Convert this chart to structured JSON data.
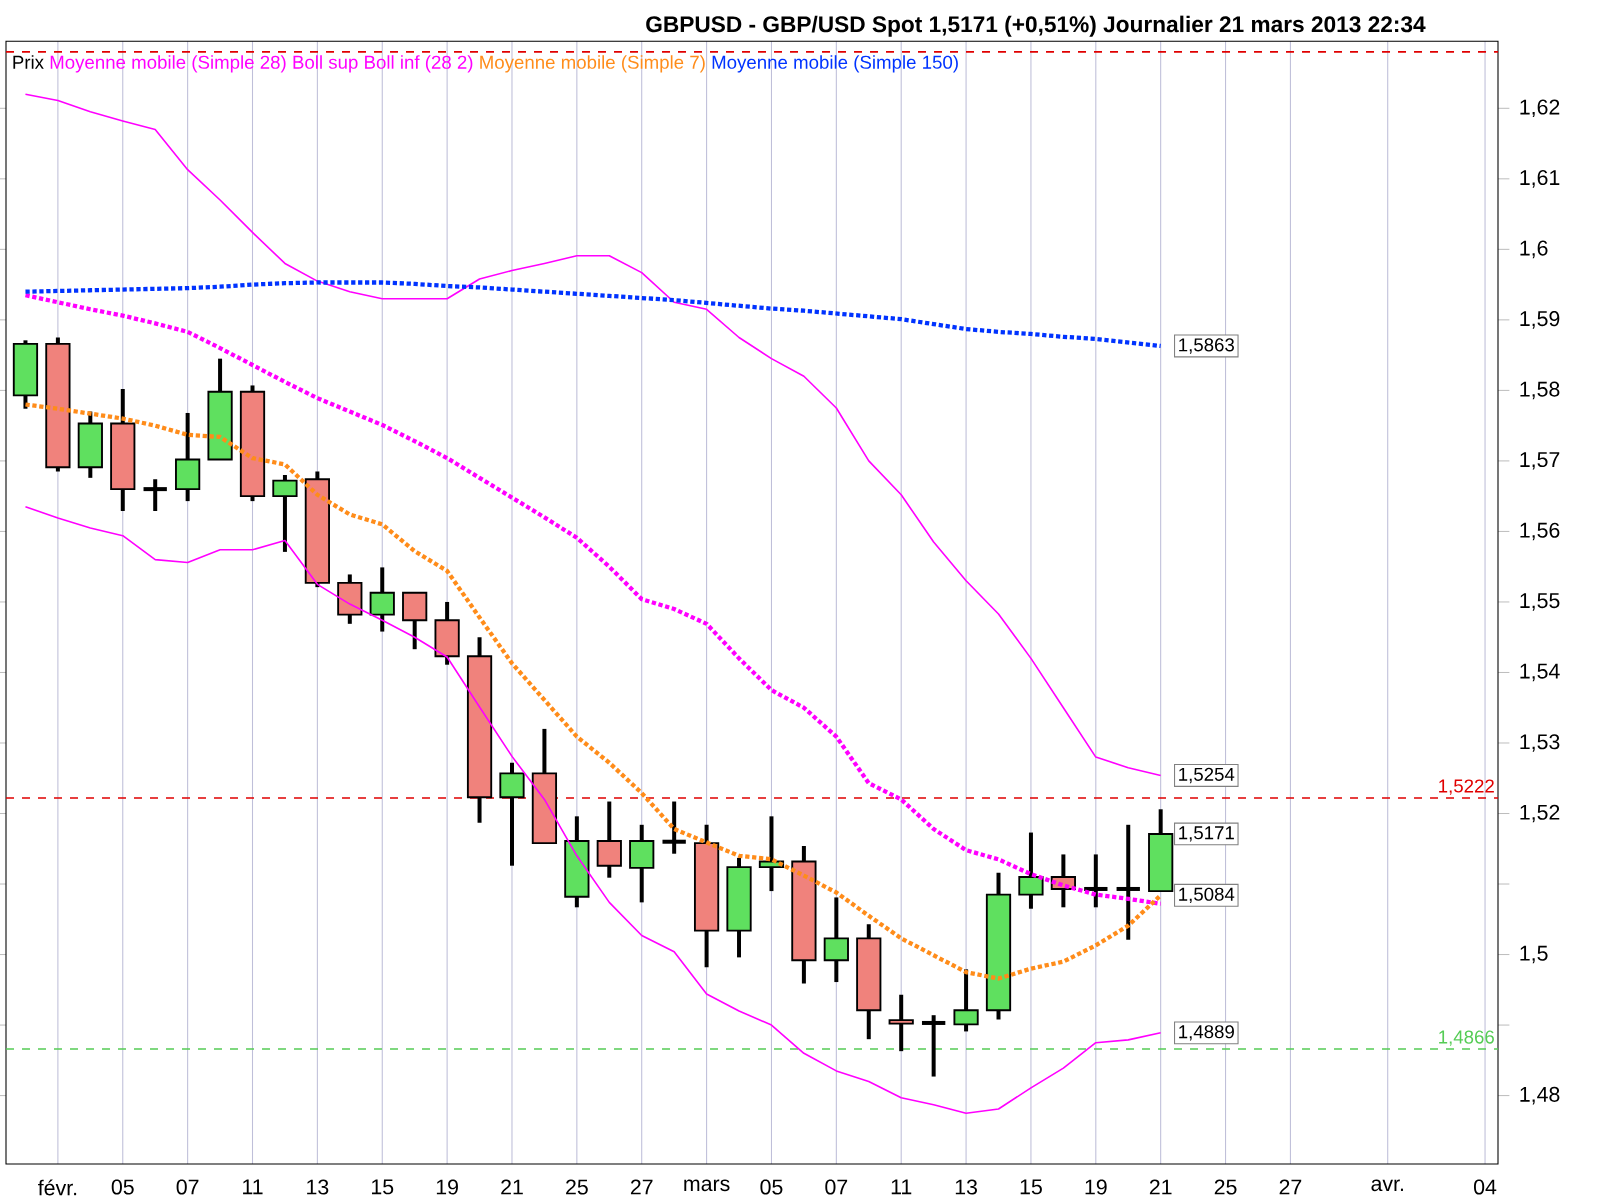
{
  "chart_data": {
    "type": "candlestick",
    "title": "GBPUSD - GBP/USD Spot   1,5171 (+0,51%)   Journalier  21 mars 2013 22:34",
    "ylim": [
      1.4703,
      1.6295
    ],
    "categories": [
      null,
      "févr.",
      null,
      "05",
      null,
      "07",
      null,
      "11",
      null,
      "13",
      null,
      "15",
      null,
      "19",
      null,
      "21",
      null,
      "25",
      null,
      "27",
      null,
      "mars",
      null,
      "05",
      null,
      "07",
      null,
      "11",
      null,
      "13",
      null,
      "15",
      null,
      "19",
      null,
      "21",
      null,
      "25",
      null,
      "27",
      null,
      null,
      "avr.",
      null,
      null,
      "04"
    ],
    "yticks": [
      {
        "value": 1.48,
        "label": "1,48"
      },
      {
        "value": 1.49,
        "label": null
      },
      {
        "value": 1.5,
        "label": "1,5"
      },
      {
        "value": 1.51,
        "label": null
      },
      {
        "value": 1.52,
        "label": "1,52"
      },
      {
        "value": 1.53,
        "label": "1,53"
      },
      {
        "value": 1.54,
        "label": "1,54"
      },
      {
        "value": 1.55,
        "label": "1,55"
      },
      {
        "value": 1.56,
        "label": "1,56"
      },
      {
        "value": 1.57,
        "label": "1,57"
      },
      {
        "value": 1.58,
        "label": "1,58"
      },
      {
        "value": 1.59,
        "label": "1,59"
      },
      {
        "value": 1.6,
        "label": "1,6"
      },
      {
        "value": 1.61,
        "label": "1,61"
      },
      {
        "value": 1.62,
        "label": "1,62"
      }
    ],
    "grid": "x",
    "legend": "top left",
    "series": [
      {
        "name": "Prix",
        "color": "#000000",
        "ohlc": [
          [
            1.5793,
            1.5871,
            1.5774,
            1.5866
          ],
          [
            1.5866,
            1.5875,
            1.5685,
            1.5691
          ],
          [
            1.5691,
            1.577,
            1.5676,
            1.5753
          ],
          [
            1.5753,
            1.5802,
            1.5629,
            1.566
          ],
          [
            1.566,
            1.5674,
            1.5629,
            1.566
          ],
          [
            1.566,
            1.5768,
            1.5643,
            1.5702
          ],
          [
            1.5702,
            1.5845,
            1.5702,
            1.5798
          ],
          [
            1.5798,
            1.5807,
            1.5643,
            1.565
          ],
          [
            1.565,
            1.568,
            1.5571,
            1.5672
          ],
          [
            1.5674,
            1.5685,
            1.5521,
            1.5527
          ],
          [
            1.5527,
            1.5539,
            1.5469,
            1.5482
          ],
          [
            1.5482,
            1.5549,
            1.5458,
            1.5513
          ],
          [
            1.5513,
            1.5513,
            1.5433,
            1.5474
          ],
          [
            1.5474,
            1.55,
            1.5411,
            1.5423
          ],
          [
            1.5423,
            1.545,
            1.5187,
            1.5223
          ],
          [
            1.5223,
            1.5272,
            1.5126,
            1.5257
          ],
          [
            1.5257,
            1.532,
            1.5158,
            1.5158
          ],
          [
            1.5082,
            1.5196,
            1.5067,
            1.5161
          ],
          [
            1.5161,
            1.5217,
            1.5109,
            1.5126
          ],
          [
            1.5123,
            1.5184,
            1.5074,
            1.5161
          ],
          [
            1.516,
            1.5217,
            1.5143,
            1.516
          ],
          [
            1.5158,
            1.5184,
            1.4982,
            1.5034
          ],
          [
            1.5034,
            1.5137,
            1.4996,
            1.5124
          ],
          [
            1.5124,
            1.5196,
            1.509,
            1.5132
          ],
          [
            1.5132,
            1.5154,
            1.4959,
            1.4992
          ],
          [
            1.4992,
            1.5081,
            1.4961,
            1.5023
          ],
          [
            1.5023,
            1.5043,
            1.488,
            1.4921
          ],
          [
            1.4907,
            1.4943,
            1.4863,
            1.4902
          ],
          [
            1.4903,
            1.4914,
            1.4827,
            1.4903
          ],
          [
            1.4901,
            1.4979,
            1.4891,
            1.4921
          ],
          [
            1.4921,
            1.5116,
            1.4908,
            1.5085
          ],
          [
            1.5085,
            1.5173,
            1.5065,
            1.511
          ],
          [
            1.511,
            1.5142,
            1.5067,
            1.5093
          ],
          [
            1.5093,
            1.5142,
            1.5067,
            1.5093
          ],
          [
            1.5093,
            1.5184,
            1.5021,
            1.5093
          ],
          [
            1.509,
            1.5206,
            1.509,
            1.5171
          ],
          null,
          null,
          null,
          null,
          null,
          null,
          null,
          null,
          null,
          null
        ],
        "colors": [
          "#5fe05f",
          "#f0827c",
          "#5fe05f",
          "#f0827c",
          "#000000",
          "#5fe05f",
          "#5fe05f",
          "#f0827c",
          "#5fe05f",
          "#f0827c",
          "#f0827c",
          "#5fe05f",
          "#f0827c",
          "#f0827c",
          "#f0827c",
          "#5fe05f",
          "#f0827c",
          "#5fe05f",
          "#f0827c",
          "#5fe05f",
          "#000000",
          "#f0827c",
          "#5fe05f",
          "#5fe05f",
          "#f0827c",
          "#5fe05f",
          "#f0827c",
          "#f0827c",
          "#000000",
          "#5fe05f",
          "#5fe05f",
          "#5fe05f",
          "#f0827c",
          "#000000",
          "#000000",
          "#5fe05f",
          null,
          null,
          null,
          null,
          null,
          null,
          null,
          null,
          null,
          null
        ],
        "value_labels": [
          null,
          null,
          null,
          null,
          null,
          null,
          null,
          null,
          null,
          null,
          null,
          null,
          null,
          null,
          null,
          null,
          null,
          null,
          null,
          null,
          null,
          null,
          null,
          null,
          null,
          null,
          null,
          null,
          null,
          null,
          null,
          null,
          null,
          null,
          null,
          "1,5171",
          null,
          null,
          null,
          null,
          null,
          null,
          null,
          null,
          null,
          null
        ]
      },
      {
        "name": "Moyenne mobile (Simple 28)",
        "type": "line",
        "color": "#ff00ff",
        "line_style": "dotted",
        "values": [
          1.5935,
          1.5925,
          1.5915,
          1.5906,
          1.5895,
          1.5883,
          1.586,
          1.5836,
          1.5812,
          1.5789,
          1.577,
          1.5751,
          1.5728,
          1.5704,
          1.5676,
          1.5648,
          1.562,
          1.5591,
          1.555,
          1.5504,
          1.549,
          1.5469,
          1.542,
          1.5375,
          1.535,
          1.5309,
          1.5243,
          1.522,
          1.5178,
          1.5148,
          1.5135,
          1.5114,
          1.5098,
          1.5085,
          1.5079,
          1.5072,
          null,
          null,
          null,
          null,
          null,
          null,
          null,
          null,
          null,
          null
        ]
      },
      {
        "name": "Boll sup Boll inf (28 2)",
        "type": "line",
        "color": "#ff00ff",
        "line_style": "solid",
        "values": [
          1.622,
          1.6211,
          1.6195,
          1.6182,
          1.617,
          1.6113,
          1.607,
          1.6024,
          1.598,
          1.5955,
          1.594,
          1.593,
          1.593,
          1.593,
          1.5958,
          1.597,
          1.598,
          1.5991,
          1.5991,
          1.5967,
          1.5925,
          1.5915,
          1.5875,
          1.5845,
          1.582,
          1.5775,
          1.57,
          1.5652,
          1.5585,
          1.553,
          1.5483,
          1.542,
          1.535,
          1.528,
          1.5265,
          1.5254,
          null,
          null,
          null,
          null,
          null,
          null,
          null,
          null,
          null,
          null
        ],
        "value_labels": [
          null,
          null,
          null,
          null,
          null,
          null,
          null,
          null,
          null,
          null,
          null,
          null,
          null,
          null,
          null,
          null,
          null,
          null,
          null,
          null,
          null,
          null,
          null,
          null,
          null,
          null,
          null,
          null,
          null,
          null,
          null,
          null,
          null,
          null,
          null,
          "1,5254",
          null,
          null,
          null,
          null,
          null,
          null,
          null,
          null,
          null,
          null
        ]
      },
      {
        "type": "line",
        "color": "#ff00ff",
        "line_style": "solid",
        "values": [
          1.5635,
          1.5619,
          1.5605,
          1.5594,
          1.556,
          1.5556,
          1.5574,
          1.5574,
          1.5587,
          1.5525,
          1.5497,
          1.5474,
          1.545,
          1.5422,
          1.5351,
          1.5281,
          1.522,
          1.514,
          1.5074,
          1.5027,
          1.5004,
          1.4944,
          1.492,
          1.49,
          1.486,
          1.4835,
          1.482,
          1.4797,
          1.4787,
          1.4775,
          1.4781,
          1.4811,
          1.4839,
          1.4875,
          1.4879,
          1.4889,
          null,
          null,
          null,
          null,
          null,
          null,
          null,
          null,
          null,
          null
        ],
        "value_labels": [
          null,
          null,
          null,
          null,
          null,
          null,
          null,
          null,
          null,
          null,
          null,
          null,
          null,
          null,
          null,
          null,
          null,
          null,
          null,
          null,
          null,
          null,
          null,
          null,
          null,
          null,
          null,
          null,
          null,
          null,
          null,
          null,
          null,
          null,
          null,
          "1,4889",
          null,
          null,
          null,
          null,
          null,
          null,
          null,
          null,
          null,
          null
        ]
      },
      {
        "name": "Moyenne mobile (Simple 7)",
        "type": "line",
        "color": "#ff8c1a",
        "line_style": "dotted",
        "values": [
          1.578,
          1.5774,
          1.5767,
          1.576,
          1.575,
          1.5737,
          1.5734,
          1.5704,
          1.5695,
          1.5652,
          1.5624,
          1.561,
          1.5572,
          1.5544,
          1.5478,
          1.5413,
          1.5361,
          1.5309,
          1.5272,
          1.5229,
          1.5178,
          1.5159,
          1.514,
          1.5135,
          1.5112,
          1.5088,
          1.5055,
          1.5023,
          1.4999,
          1.4975,
          1.4966,
          1.498,
          1.499,
          1.5013,
          1.5041,
          1.5084,
          null,
          null,
          null,
          null,
          null,
          null,
          null,
          null,
          null,
          null
        ],
        "value_labels": [
          null,
          null,
          null,
          null,
          null,
          null,
          null,
          null,
          null,
          null,
          null,
          null,
          null,
          null,
          null,
          null,
          null,
          null,
          null,
          null,
          null,
          null,
          null,
          null,
          null,
          null,
          null,
          null,
          null,
          null,
          null,
          null,
          null,
          null,
          null,
          "1,5084",
          null,
          null,
          null,
          null,
          null,
          null,
          null,
          null,
          null,
          null
        ]
      },
      {
        "name": "Moyenne mobile (Simple 150)",
        "type": "line",
        "color": "#0033ff",
        "line_style": "dotted",
        "values": [
          1.594,
          1.5941,
          1.5942,
          1.5943,
          1.5944,
          1.5945,
          1.5947,
          1.595,
          1.5952,
          1.5953,
          1.5953,
          1.5953,
          1.5951,
          1.5948,
          1.5946,
          1.5943,
          1.594,
          1.5937,
          1.5934,
          1.5931,
          1.5928,
          1.5924,
          1.592,
          1.5916,
          1.5913,
          1.5909,
          1.5905,
          1.5901,
          1.5894,
          1.5887,
          1.5883,
          1.588,
          1.5876,
          1.5873,
          1.5868,
          1.5863,
          null,
          null,
          null,
          null,
          null,
          null,
          null,
          null,
          null,
          null
        ],
        "value_labels": [
          null,
          null,
          null,
          null,
          null,
          null,
          null,
          null,
          null,
          null,
          null,
          null,
          null,
          null,
          null,
          null,
          null,
          null,
          null,
          null,
          null,
          null,
          null,
          null,
          null,
          null,
          null,
          null,
          null,
          null,
          null,
          null,
          null,
          null,
          null,
          "1,5863",
          null,
          null,
          null,
          null,
          null,
          null,
          null,
          null,
          null,
          null
        ]
      }
    ],
    "ref_lines": [
      {
        "axis": "y",
        "value": 1.628,
        "color": "#e00000",
        "line_style": "dashed"
      },
      {
        "axis": "y",
        "value": 1.5222,
        "label": "1,5222",
        "color": "#e00000",
        "line_style": "dashed"
      },
      {
        "axis": "y",
        "value": 1.4866,
        "label": "1,4866",
        "color": "#55cc55",
        "line_style": "dashed"
      }
    ]
  }
}
